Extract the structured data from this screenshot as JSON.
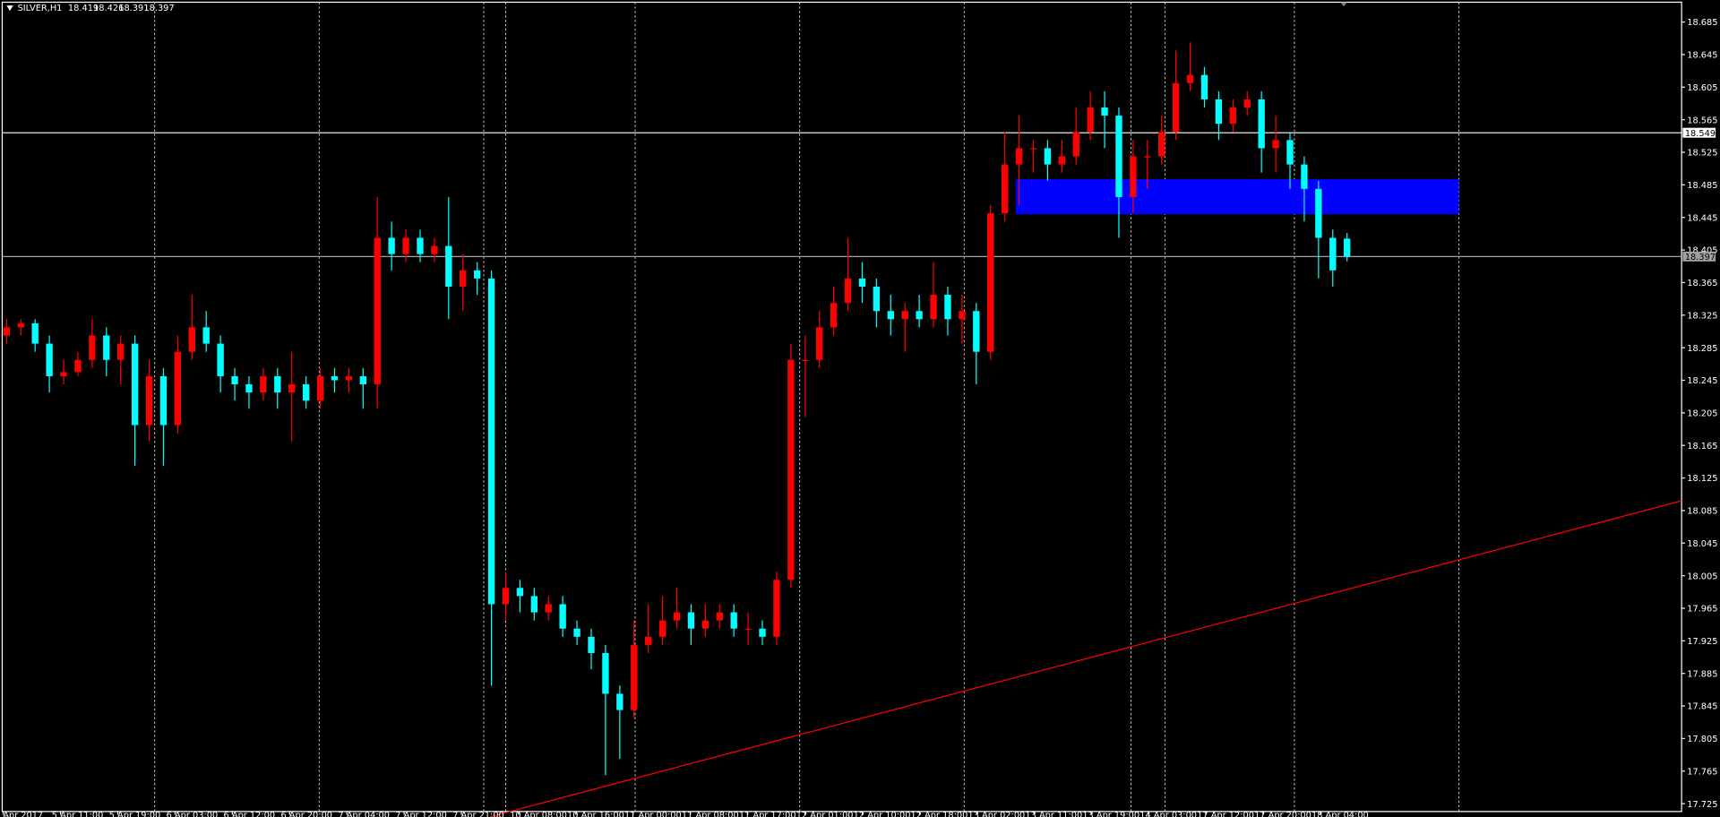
{
  "chart_data": {
    "type": "candlestick",
    "symbol": "SILVER,H1",
    "up_color": "#ff0000",
    "down_color": "#00ffff",
    "ylim": [
      17.71,
      18.71
    ],
    "yticks": [
      18.685,
      18.645,
      18.605,
      18.565,
      18.525,
      18.485,
      18.445,
      18.405,
      18.365,
      18.325,
      18.285,
      18.245,
      18.205,
      18.165,
      18.125,
      18.085,
      18.045,
      18.005,
      17.965,
      17.925,
      17.885,
      17.845,
      17.805,
      17.765,
      17.725
    ],
    "time_labels": [
      "5 Apr 2017",
      "5 Apr 11:00",
      "5 Apr 19:00",
      "6 Apr 03:00",
      "6 Apr 12:00",
      "6 Apr 20:00",
      "7 Apr 04:00",
      "7 Apr 12:00",
      "7 Apr 21:00",
      "10 Apr 08:00",
      "10 Apr 16:00",
      "11 Apr 00:00",
      "11 Apr 08:00",
      "11 Apr 17:00",
      "12 Apr 01:00",
      "12 Apr 10:00",
      "12 Apr 18:00",
      "13 Apr 02:00",
      "13 Apr 11:00",
      "13 Apr 19:00",
      "14 Apr 03:00",
      "17 Apr 12:00",
      "17 Apr 20:00",
      "18 Apr 04:00"
    ],
    "hlines": [
      {
        "value": 18.549,
        "color": "#ffffff"
      },
      {
        "value": 18.397,
        "color": "#a0a0a0"
      }
    ],
    "zone": {
      "top": 18.492,
      "bottom": 18.449,
      "color": "#0000ff"
    },
    "trendline": {
      "start": 17.709,
      "end": 18.097,
      "color": "#ff0000"
    },
    "ohlc": [
      [
        18.3,
        18.32,
        18.29,
        18.31
      ],
      [
        18.31,
        18.32,
        18.3,
        18.315
      ],
      [
        18.315,
        18.32,
        18.28,
        18.29
      ],
      [
        18.29,
        18.3,
        18.23,
        18.25
      ],
      [
        18.25,
        18.27,
        18.24,
        18.255
      ],
      [
        18.255,
        18.28,
        18.25,
        18.27
      ],
      [
        18.27,
        18.32,
        18.26,
        18.3
      ],
      [
        18.3,
        18.31,
        18.25,
        18.27
      ],
      [
        18.27,
        18.3,
        18.24,
        18.29
      ],
      [
        18.29,
        18.3,
        18.14,
        18.19
      ],
      [
        18.19,
        18.27,
        18.17,
        18.25
      ],
      [
        18.25,
        18.26,
        18.14,
        18.19
      ],
      [
        18.19,
        18.3,
        18.18,
        18.28
      ],
      [
        18.28,
        18.35,
        18.27,
        18.31
      ],
      [
        18.31,
        18.33,
        18.28,
        18.29
      ],
      [
        18.29,
        18.3,
        18.23,
        18.25
      ],
      [
        18.25,
        18.26,
        18.22,
        18.24
      ],
      [
        18.24,
        18.25,
        18.21,
        18.23
      ],
      [
        18.23,
        18.26,
        18.22,
        18.25
      ],
      [
        18.25,
        18.26,
        18.21,
        18.23
      ],
      [
        18.23,
        18.28,
        18.17,
        18.24
      ],
      [
        18.24,
        18.25,
        18.21,
        18.22
      ],
      [
        18.22,
        18.26,
        18.21,
        18.25
      ],
      [
        18.25,
        18.26,
        18.23,
        18.245
      ],
      [
        18.245,
        18.26,
        18.23,
        18.25
      ],
      [
        18.25,
        18.26,
        18.21,
        18.24
      ],
      [
        18.24,
        18.47,
        18.21,
        18.42
      ],
      [
        18.42,
        18.44,
        18.38,
        18.4
      ],
      [
        18.4,
        18.43,
        18.39,
        18.42
      ],
      [
        18.42,
        18.43,
        18.39,
        18.4
      ],
      [
        18.4,
        18.42,
        18.39,
        18.41
      ],
      [
        18.41,
        18.47,
        18.32,
        18.36
      ],
      [
        18.36,
        18.4,
        18.33,
        18.38
      ],
      [
        18.38,
        18.39,
        18.35,
        18.37
      ],
      [
        18.37,
        18.38,
        17.87,
        17.97
      ],
      [
        17.97,
        18.01,
        17.95,
        17.99
      ],
      [
        17.99,
        18.0,
        17.96,
        17.98
      ],
      [
        17.98,
        17.99,
        17.95,
        17.96
      ],
      [
        17.96,
        17.98,
        17.95,
        17.97
      ],
      [
        17.97,
        17.98,
        17.93,
        17.94
      ],
      [
        17.94,
        17.95,
        17.92,
        17.93
      ],
      [
        17.93,
        17.94,
        17.89,
        17.91
      ],
      [
        17.91,
        17.92,
        17.76,
        17.86
      ],
      [
        17.86,
        17.87,
        17.78,
        17.84
      ],
      [
        17.84,
        17.95,
        17.83,
        17.92
      ],
      [
        17.92,
        17.97,
        17.91,
        17.93
      ],
      [
        17.93,
        17.98,
        17.92,
        17.95
      ],
      [
        17.95,
        17.99,
        17.94,
        17.96
      ],
      [
        17.96,
        17.97,
        17.92,
        17.94
      ],
      [
        17.94,
        17.97,
        17.93,
        17.95
      ],
      [
        17.95,
        17.97,
        17.94,
        17.96
      ],
      [
        17.96,
        17.97,
        17.93,
        17.94
      ],
      [
        17.94,
        17.96,
        17.92,
        17.94
      ],
      [
        17.94,
        17.95,
        17.92,
        17.93
      ],
      [
        17.93,
        18.01,
        17.92,
        18.0
      ],
      [
        18.0,
        18.29,
        17.99,
        18.27
      ],
      [
        18.27,
        18.3,
        18.2,
        18.27
      ],
      [
        18.27,
        18.33,
        18.26,
        18.31
      ],
      [
        18.31,
        18.36,
        18.3,
        18.34
      ],
      [
        18.34,
        18.42,
        18.33,
        18.37
      ],
      [
        18.37,
        18.39,
        18.34,
        18.36
      ],
      [
        18.36,
        18.37,
        18.31,
        18.33
      ],
      [
        18.33,
        18.35,
        18.3,
        18.32
      ],
      [
        18.32,
        18.34,
        18.28,
        18.33
      ],
      [
        18.33,
        18.35,
        18.31,
        18.32
      ],
      [
        18.32,
        18.39,
        18.31,
        18.35
      ],
      [
        18.35,
        18.36,
        18.3,
        18.32
      ],
      [
        18.32,
        18.35,
        18.29,
        18.33
      ],
      [
        18.33,
        18.34,
        18.24,
        18.28
      ],
      [
        18.28,
        18.46,
        18.27,
        18.45
      ],
      [
        18.45,
        18.55,
        18.44,
        18.51
      ],
      [
        18.51,
        18.57,
        18.46,
        18.53
      ],
      [
        18.53,
        18.54,
        18.5,
        18.53
      ],
      [
        18.53,
        18.54,
        18.49,
        18.51
      ],
      [
        18.51,
        18.54,
        18.5,
        18.52
      ],
      [
        18.52,
        18.58,
        18.51,
        18.55
      ],
      [
        18.55,
        18.6,
        18.54,
        18.58
      ],
      [
        18.58,
        18.6,
        18.53,
        18.57
      ],
      [
        18.57,
        18.58,
        18.42,
        18.47
      ],
      [
        18.47,
        18.54,
        18.45,
        18.52
      ],
      [
        18.52,
        18.54,
        18.48,
        18.52
      ],
      [
        18.52,
        18.57,
        18.51,
        18.55
      ],
      [
        18.55,
        18.65,
        18.54,
        18.61
      ],
      [
        18.61,
        18.66,
        18.6,
        18.62
      ],
      [
        18.62,
        18.63,
        18.58,
        18.59
      ],
      [
        18.59,
        18.6,
        18.54,
        18.56
      ],
      [
        18.56,
        18.59,
        18.55,
        18.58
      ],
      [
        18.58,
        18.6,
        18.57,
        18.59
      ],
      [
        18.59,
        18.6,
        18.5,
        18.53
      ],
      [
        18.53,
        18.57,
        18.5,
        18.54
      ],
      [
        18.54,
        18.55,
        18.48,
        18.51
      ],
      [
        18.51,
        18.52,
        18.44,
        18.48
      ],
      [
        18.48,
        18.49,
        18.37,
        18.42
      ],
      [
        18.42,
        18.43,
        18.36,
        18.38
      ],
      [
        18.419,
        18.426,
        18.391,
        18.397
      ]
    ]
  }
}
